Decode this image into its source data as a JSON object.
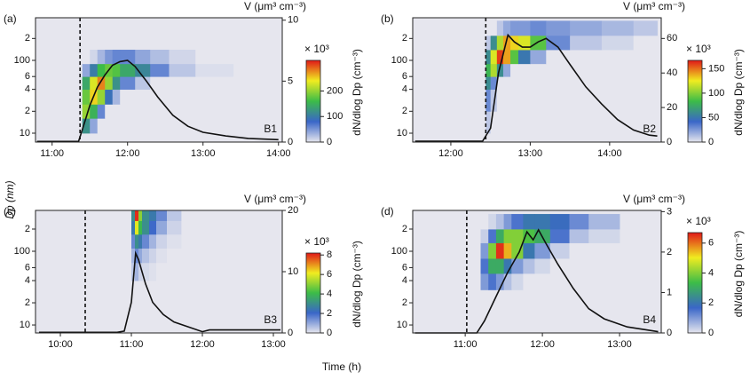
{
  "figure": {
    "ylabel": "Dp (nm)",
    "xlabel": "Time (h)"
  },
  "chart_data": [
    {
      "type": "heatmap_line",
      "panel": "(a)",
      "tag": "B1",
      "y2label": "V (μm³ cm⁻³)",
      "clabel": "dN/dlog Dp (cm⁻³)",
      "cmult": "× 10³",
      "ylog": true,
      "xlim": [
        10.78,
        14.05
      ],
      "xticks": [
        {
          "value": 11,
          "label": "11:00"
        },
        {
          "value": 12,
          "label": "12:00"
        },
        {
          "value": 13,
          "label": "13:00"
        },
        {
          "value": 14,
          "label": "14:00"
        }
      ],
      "ylim": [
        7.55,
        385
      ],
      "yticks": [
        {
          "value": 200,
          "label": "2"
        },
        100,
        {
          "value": 60,
          "label": "6"
        },
        {
          "value": 40,
          "label": "4"
        },
        {
          "value": 20,
          "label": "2"
        },
        10
      ],
      "y2lim": [
        0,
        10.2
      ],
      "y2ticks": [
        0,
        5,
        10
      ],
      "clim": [
        0,
        320
      ],
      "cticks": [
        0,
        100,
        200
      ],
      "colormap": [
        "#e6e6ee",
        "#3a66c8",
        "#3cbc48",
        "#f0ec20",
        "#e01818"
      ],
      "event_time": 11.37,
      "x_edges": [
        11.4,
        11.5,
        11.6,
        11.7,
        11.8,
        11.9,
        12.1,
        12.3,
        12.55,
        12.9,
        13.4
      ],
      "y_edges": [
        10,
        16,
        25,
        40,
        60,
        90,
        140
      ],
      "z": [
        [
          120,
          40,
          0,
          0,
          0,
          0,
          0,
          0,
          0,
          0
        ],
        [
          200,
          150,
          60,
          0,
          0,
          0,
          0,
          0,
          0,
          0
        ],
        [
          180,
          250,
          200,
          90,
          30,
          0,
          0,
          0,
          0,
          0
        ],
        [
          140,
          230,
          280,
          200,
          120,
          60,
          20,
          0,
          0,
          0
        ],
        [
          40,
          100,
          160,
          180,
          170,
          140,
          110,
          60,
          20,
          5
        ],
        [
          0,
          10,
          30,
          50,
          60,
          60,
          40,
          25,
          10,
          0
        ]
      ],
      "line": {
        "axis": "y2",
        "color": "#111111",
        "x": [
          10.8,
          11.35,
          11.4,
          11.5,
          11.6,
          11.7,
          11.8,
          11.9,
          12.0,
          12.1,
          12.25,
          12.4,
          12.6,
          12.8,
          13.0,
          13.3,
          13.6,
          14.0
        ],
        "values": [
          0.05,
          0.05,
          1,
          3,
          4.5,
          5.5,
          6.3,
          6.6,
          6.7,
          6.2,
          5.0,
          3.7,
          2.2,
          1.3,
          0.8,
          0.5,
          0.3,
          0.2
        ]
      }
    },
    {
      "type": "heatmap_line",
      "panel": "(b)",
      "tag": "B2",
      "y2label": "V (μm³ cm⁻³)",
      "clabel": "dN/dlog Dp (cm⁻³)",
      "cmult": "× 10³",
      "ylog": true,
      "xlim": [
        11.52,
        14.65
      ],
      "xticks": [
        {
          "value": 12,
          "label": "12:00"
        },
        {
          "value": 13,
          "label": "13:00"
        },
        {
          "value": 14,
          "label": "14:00"
        }
      ],
      "ylim": [
        7.55,
        385
      ],
      "yticks": [
        {
          "value": 200,
          "label": "2"
        },
        100,
        {
          "value": 60,
          "label": "6"
        },
        {
          "value": 40,
          "label": "4"
        },
        {
          "value": 20,
          "label": "2"
        },
        10
      ],
      "y2lim": [
        0,
        72
      ],
      "y2ticks": [
        0,
        20,
        40,
        60
      ],
      "clim": [
        0,
        167
      ],
      "cticks": [
        0,
        50,
        100,
        150
      ],
      "colormap": [
        "#e6e6ee",
        "#3a66c8",
        "#3cbc48",
        "#f0ec20",
        "#e01818"
      ],
      "event_time": 12.44,
      "x_edges": [
        12.44,
        12.5,
        12.58,
        12.66,
        12.75,
        12.85,
        13.0,
        13.2,
        13.5,
        13.9,
        14.3,
        14.6
      ],
      "y_edges": [
        10,
        20,
        40,
        60,
        90,
        140,
        220,
        350
      ],
      "z": [
        [
          10,
          0,
          0,
          0,
          0,
          0,
          0,
          0,
          0,
          0,
          0
        ],
        [
          30,
          10,
          0,
          0,
          0,
          0,
          0,
          0,
          0,
          0,
          0
        ],
        [
          60,
          30,
          0,
          0,
          0,
          0,
          0,
          0,
          0,
          0,
          0
        ],
        [
          80,
          110,
          60,
          20,
          0,
          0,
          0,
          0,
          0,
          0,
          0
        ],
        [
          60,
          120,
          160,
          140,
          90,
          50,
          20,
          0,
          0,
          0,
          0
        ],
        [
          10,
          60,
          110,
          140,
          130,
          120,
          90,
          30,
          10,
          5,
          0
        ],
        [
          0,
          0,
          10,
          20,
          25,
          25,
          30,
          25,
          20,
          15,
          10
        ]
      ],
      "line": {
        "axis": "y2",
        "color": "#111111",
        "x": [
          11.55,
          12.4,
          12.5,
          12.6,
          12.72,
          12.8,
          12.9,
          13.0,
          13.1,
          13.2,
          13.35,
          13.5,
          13.7,
          13.9,
          14.1,
          14.3,
          14.5,
          14.6
        ],
        "values": [
          0.5,
          0.5,
          8,
          40,
          62,
          58,
          55,
          55,
          58,
          60,
          55,
          45,
          32,
          22,
          13,
          7,
          4,
          3.5
        ]
      }
    },
    {
      "type": "heatmap_line",
      "panel": "(c)",
      "tag": "B3",
      "y2label": "V (μm³ cm⁻³)",
      "clabel": "dN/dlog Dp (cm⁻³)",
      "cmult": "× 10³",
      "ylog": true,
      "xlim": [
        9.65,
        13.125
      ],
      "xticks": [
        {
          "value": 10,
          "label": "10:00"
        },
        {
          "value": 11,
          "label": "11:00"
        },
        {
          "value": 12,
          "label": "12:00"
        },
        {
          "value": 13,
          "label": "13:00"
        }
      ],
      "ylim": [
        7.8,
        358
      ],
      "yticks": [
        {
          "value": 200,
          "label": "2"
        },
        100,
        {
          "value": 60,
          "label": "6"
        },
        {
          "value": 40,
          "label": "4"
        },
        {
          "value": 20,
          "label": "2"
        },
        10
      ],
      "y2lim": [
        0,
        20
      ],
      "y2ticks": [
        0,
        10,
        20
      ],
      "clim": [
        0,
        8.2
      ],
      "cticks": [
        0,
        2,
        4,
        6,
        8
      ],
      "colormap": [
        "#e6e6ee",
        "#3a66c8",
        "#3cbc48",
        "#f0ec20",
        "#e01818"
      ],
      "event_time": 10.35,
      "x_edges": [
        11.0,
        11.05,
        11.1,
        11.15,
        11.25,
        11.35,
        11.5,
        11.7
      ],
      "y_edges": [
        40,
        70,
        110,
        170,
        260,
        358
      ],
      "z": [
        [
          0.5,
          0.8,
          0.3,
          0.2,
          0.1,
          0,
          0
        ],
        [
          0.8,
          1.5,
          1.0,
          0.6,
          0.3,
          0.1,
          0
        ],
        [
          1.5,
          3,
          2.5,
          1.5,
          0.8,
          0.3,
          0.1
        ],
        [
          2.5,
          6,
          4,
          3,
          2,
          1,
          0.3
        ],
        [
          3,
          8,
          5,
          3,
          2.5,
          1.5,
          0.5
        ]
      ],
      "line": {
        "axis": "y2",
        "color": "#111111",
        "x": [
          9.7,
          10.8,
          10.9,
          11.0,
          11.06,
          11.1,
          11.2,
          11.3,
          11.45,
          11.6,
          11.8,
          12.0,
          12.1,
          13.1
        ],
        "values": [
          0.1,
          0.1,
          0.3,
          5,
          13,
          12,
          8,
          5,
          3,
          1.8,
          1,
          0.2,
          0.5,
          0.5
        ]
      }
    },
    {
      "type": "heatmap_line",
      "panel": "(d)",
      "tag": "B4",
      "y2label": "V (μm³ cm⁻³)",
      "clabel": "dN/dlog Dp (cm⁻³)",
      "cmult": "× 10³",
      "ylog": true,
      "xlim": [
        10.32,
        13.54
      ],
      "xticks": [
        {
          "value": 11,
          "label": "11:00"
        },
        {
          "value": 12,
          "label": "12:00"
        },
        {
          "value": 13,
          "label": "13:00"
        }
      ],
      "ylim": [
        7.8,
        358
      ],
      "yticks": [
        {
          "value": 200,
          "label": "2"
        },
        100,
        {
          "value": 60,
          "label": "6"
        },
        {
          "value": 40,
          "label": "4"
        },
        {
          "value": 20,
          "label": "2"
        },
        10
      ],
      "y2lim": [
        0,
        3.03
      ],
      "y2ticks": [
        0,
        1,
        2,
        3
      ],
      "clim": [
        0,
        6.7
      ],
      "cticks": [
        0,
        2,
        4,
        6
      ],
      "colormap": [
        "#e6e6ee",
        "#3a66c8",
        "#3cbc48",
        "#f0ec20",
        "#e01818"
      ],
      "event_time": 11.02,
      "x_edges": [
        11.2,
        11.3,
        11.4,
        11.5,
        11.6,
        11.75,
        11.9,
        12.1,
        12.35,
        12.6,
        13.0
      ],
      "y_edges": [
        30,
        50,
        80,
        130,
        200,
        320
      ],
      "z": [
        [
          1,
          1.5,
          1,
          0.5,
          0.2,
          0,
          0,
          0,
          0,
          0
        ],
        [
          1.5,
          3,
          3,
          2,
          1,
          0.5,
          0.2,
          0,
          0,
          0
        ],
        [
          1,
          4,
          6.5,
          5.5,
          4,
          2,
          1,
          0.3,
          0,
          0
        ],
        [
          0.3,
          1.5,
          3,
          4,
          4,
          3.5,
          3,
          1.5,
          0.5,
          0.2
        ],
        [
          0,
          0.2,
          0.5,
          1,
          1.5,
          2,
          2,
          1.8,
          1.2,
          0.6
        ]
      ],
      "line": {
        "axis": "y2",
        "color": "#111111",
        "x": [
          10.35,
          11.15,
          11.25,
          11.4,
          11.55,
          11.7,
          11.8,
          11.88,
          11.95,
          12.05,
          12.2,
          12.4,
          12.6,
          12.8,
          13.1,
          13.5
        ],
        "values": [
          0,
          0,
          0.3,
          0.9,
          1.5,
          2.0,
          2.5,
          2.3,
          2.55,
          2.2,
          1.7,
          1.1,
          0.6,
          0.35,
          0.15,
          0.03
        ]
      }
    }
  ]
}
